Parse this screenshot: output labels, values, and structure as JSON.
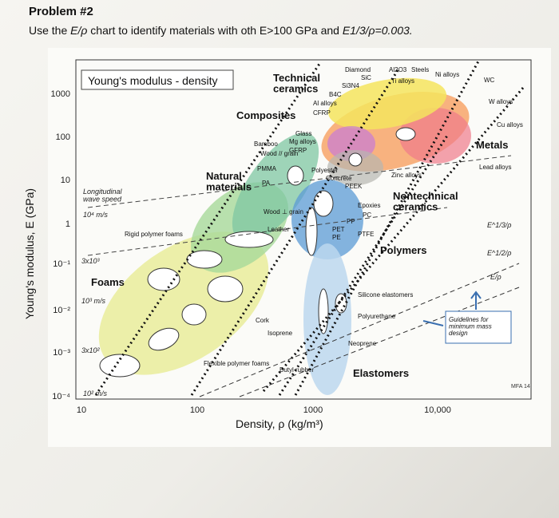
{
  "problem": {
    "title": "Problem #2",
    "question_pre": "Use the ",
    "question_ratio_1": "E/ρ",
    "question_mid": " chart to identify materials with oth E>100 GPa and ",
    "question_ratio_2": "E1/3/ρ=0.003."
  },
  "chart": {
    "title": "Young's modulus - density",
    "xlabel": "Density, ρ (kg/m³)",
    "ylabel": "Young's modulus, E (GPa)",
    "x_ticks": [
      "10",
      "100",
      "1000",
      "10,000"
    ],
    "y_ticks": [
      "1000",
      "100",
      "10",
      "1",
      "10⁻¹",
      "10⁻²",
      "10⁻³",
      "10⁻⁴"
    ],
    "groups": {
      "technical_ceramics": "Technical\nceramics",
      "composites": "Composites",
      "natural_materials": "Natural\nmaterials",
      "metals": "Metals",
      "nontechnical_ceramics": "Nontechnical\nceramics",
      "polymers": "Polymers",
      "foams": "Foams",
      "elastomers": "Elastomers"
    },
    "materials": [
      "Diamond",
      "SiC",
      "Si3N4",
      "Al2O3",
      "Steels",
      "Ti alloys",
      "Ni alloys",
      "B4C",
      "Al alloys",
      "CFRP",
      "WC",
      "W alloys",
      "Cu alloys",
      "Glass",
      "Mg alloys",
      "GFRP",
      "Bamboo",
      "Wood // grain",
      "PMMA",
      "Polyester",
      "Concrete",
      "PEEK",
      "PA",
      "Zinc alloys",
      "Lead alloys",
      "Wood ⊥ grain",
      "Leather",
      "PP",
      "PET",
      "PE",
      "Epoxies",
      "PC",
      "PTFE",
      "Rigid polymer foams",
      "Cork",
      "Silicone elastomers",
      "Polyurethane",
      "Isoprene",
      "Neoprene",
      "Flexible polymer foams",
      "Butyl rubber"
    ],
    "annotations": {
      "speed_1": "Longitudinal\nwave speed",
      "speed_2": "10⁴ m/s",
      "speed_3": "3x10³",
      "speed_4": "10³ m/s",
      "speed_5": "3x10²",
      "speed_6": "10² m/s",
      "guide_1": "E^1/3/ρ",
      "guide_2": "E^1/2/ρ",
      "guide_3": "E/ρ",
      "guidelines": "Guidelines for\nminimum mass\ndesign",
      "credit": "MFA 14"
    }
  }
}
